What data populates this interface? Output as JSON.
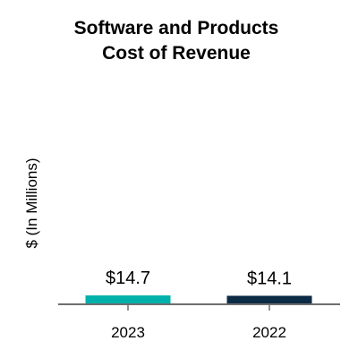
{
  "chart_data": {
    "type": "bar",
    "title_lines": [
      "Software and Products",
      "Cost of Revenue"
    ],
    "ylabel": "$ (In Millions)",
    "xlabel": "",
    "categories": [
      "2023",
      "2022"
    ],
    "values": [
      14.7,
      14.1
    ],
    "value_labels": [
      "$14.7",
      "$14.1"
    ],
    "bar_colors": [
      "#00b0aa",
      "#0c2b45"
    ],
    "ylim": [
      0,
      400
    ],
    "grid": false,
    "legend": "none"
  },
  "colors": {
    "axis_line": "#6e6e6e",
    "background": "#ffffff"
  }
}
